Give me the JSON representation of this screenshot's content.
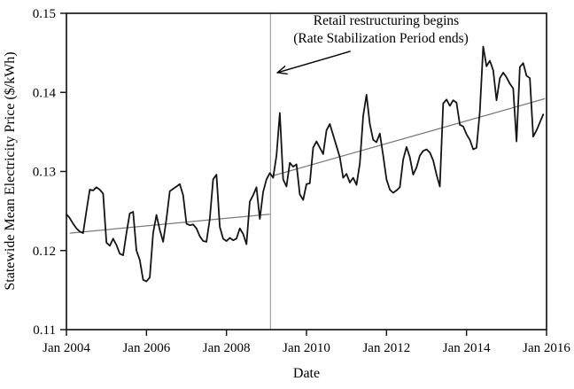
{
  "figure": {
    "ylabel": "Statewide Mean Electricity Price ($/kWh)",
    "xlabel": "Date",
    "annotation_line1": "Retail restructuring begins",
    "annotation_line2": "(Rate Stabilization Period ends)"
  },
  "chart_data": {
    "type": "line",
    "title": "",
    "xlabel": "Date",
    "ylabel": "Statewide Mean Electricity Price ($/kWh)",
    "grid": false,
    "legend": "none",
    "x_unit": "months since Jan 2004, monthly frequency",
    "xlim_months": [
      0,
      144
    ],
    "ylim": [
      0.11,
      0.15
    ],
    "x_tick_months": [
      0,
      24,
      48,
      72,
      96,
      120,
      144
    ],
    "x_tick_labels": [
      "Jan 2004",
      "Jan 2006",
      "Jan 2008",
      "Jan 2010",
      "Jan 2012",
      "Jan 2014",
      "Jan 2016"
    ],
    "y_tick_values": [
      0.11,
      0.12,
      0.13,
      0.14,
      0.15
    ],
    "y_tick_labels": [
      "0.11",
      "0.12",
      "0.13",
      "0.14",
      "0.15"
    ],
    "break_line_month": 61.2,
    "annotation": {
      "line1": "Retail restructuring begins",
      "line2": "(Rate Stabilization Period ends)",
      "arrow_from_month_value": [
        [
          85.2,
          0.1452
        ],
        [
          63.3,
          0.1425
        ]
      ]
    },
    "series": [
      {
        "name": "statewide_mean_price",
        "start": "Jan 2004",
        "frequency": "monthly",
        "values": [
          0.1246,
          0.1241,
          0.1234,
          0.1228,
          0.1224,
          0.1222,
          0.125,
          0.1277,
          0.1276,
          0.128,
          0.1277,
          0.1272,
          0.121,
          0.1206,
          0.1215,
          0.1207,
          0.1196,
          0.1194,
          0.1222,
          0.1247,
          0.1249,
          0.12,
          0.1188,
          0.1163,
          0.1161,
          0.1166,
          0.1222,
          0.1245,
          0.1226,
          0.1211,
          0.124,
          0.1275,
          0.1278,
          0.1281,
          0.1284,
          0.127,
          0.1234,
          0.1232,
          0.1233,
          0.1228,
          0.1218,
          0.1212,
          0.1211,
          0.124,
          0.129,
          0.1296,
          0.123,
          0.1215,
          0.1212,
          0.1216,
          0.1213,
          0.1215,
          0.1228,
          0.1221,
          0.1208,
          0.1262,
          0.127,
          0.128,
          0.124,
          0.1274,
          0.129,
          0.1298,
          0.1292,
          0.132,
          0.1374,
          0.129,
          0.1281,
          0.1311,
          0.1306,
          0.1309,
          0.1271,
          0.1264,
          0.1284,
          0.1285,
          0.133,
          0.1338,
          0.133,
          0.1322,
          0.1352,
          0.136,
          0.1346,
          0.1332,
          0.1318,
          0.1292,
          0.1297,
          0.1286,
          0.1292,
          0.1283,
          0.131,
          0.137,
          0.1397,
          0.136,
          0.134,
          0.1337,
          0.1348,
          0.132,
          0.129,
          0.1277,
          0.1273,
          0.1276,
          0.128,
          0.1315,
          0.1331,
          0.1318,
          0.1296,
          0.1305,
          0.132,
          0.1326,
          0.1328,
          0.1324,
          0.1314,
          0.1296,
          0.1281,
          0.1386,
          0.1391,
          0.1383,
          0.139,
          0.1387,
          0.1359,
          0.1357,
          0.1347,
          0.134,
          0.1328,
          0.133,
          0.1376,
          0.1458,
          0.1433,
          0.144,
          0.1428,
          0.139,
          0.1418,
          0.1425,
          0.1419,
          0.1411,
          0.1405,
          0.1338,
          0.1432,
          0.1437,
          0.1421,
          0.1418,
          0.1344,
          0.1352,
          0.1362,
          0.1372
        ]
      },
      {
        "name": "pre_period_linear_trend",
        "x_months": [
          1,
          61
        ],
        "values": [
          0.1222,
          0.1246
        ]
      },
      {
        "name": "post_period_linear_trend",
        "x_months": [
          61.4,
          143.5
        ],
        "values": [
          0.1294,
          0.1392
        ]
      }
    ],
    "colors": {
      "data_line": "#141414",
      "trend_line": "#7a7a7a",
      "break_line": "#9a9a9a",
      "frame": "#1a1a1a",
      "text": "#000000",
      "background": "#ffffff"
    }
  }
}
